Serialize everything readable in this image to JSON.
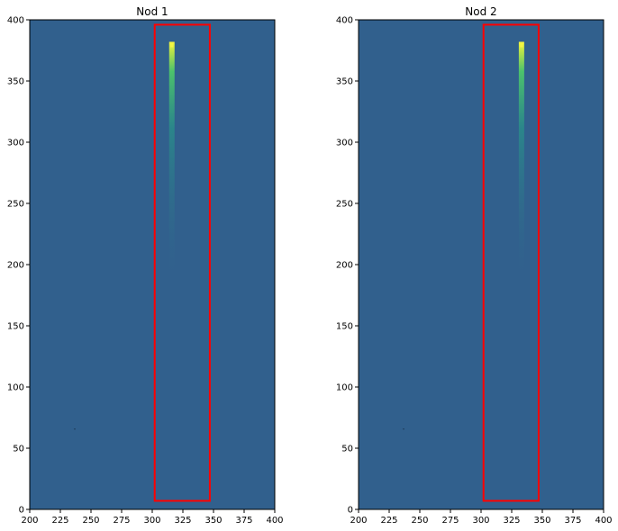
{
  "chart_data": [
    {
      "type": "heatmap",
      "title": "Nod 1",
      "xlabel": "",
      "ylabel": "",
      "xlim": [
        200,
        400
      ],
      "ylim": [
        0,
        400
      ],
      "xticks": [
        200,
        225,
        250,
        275,
        300,
        325,
        350,
        375,
        400
      ],
      "yticks": [
        0,
        50,
        100,
        150,
        200,
        250,
        300,
        350,
        400
      ],
      "xtick_labels": [
        "200",
        "225",
        "250",
        "275",
        "300",
        "325",
        "350",
        "375",
        "400"
      ],
      "ytick_labels": [
        "0",
        "50",
        "100",
        "150",
        "200",
        "250",
        "300",
        "350",
        "400"
      ],
      "background_color": "#31608d",
      "trace": {
        "x": 316,
        "y_top": 382,
        "y_bottom": 180,
        "peak_color": "#f4f542"
      },
      "box": {
        "x0": 302,
        "x1": 347,
        "y0": 7,
        "y1": 396,
        "color": "#ff0000"
      },
      "dot": {
        "x": 236,
        "y": 66
      },
      "grid": false
    },
    {
      "type": "heatmap",
      "title": "Nod 2",
      "xlabel": "",
      "ylabel": "",
      "xlim": [
        200,
        400
      ],
      "ylim": [
        0,
        400
      ],
      "xticks": [
        200,
        225,
        250,
        275,
        300,
        325,
        350,
        375,
        400
      ],
      "yticks": [
        0,
        50,
        100,
        150,
        200,
        250,
        300,
        350,
        400
      ],
      "xtick_labels": [
        "200",
        "225",
        "250",
        "275",
        "300",
        "325",
        "350",
        "375",
        "400"
      ],
      "ytick_labels": [
        "0",
        "50",
        "100",
        "150",
        "200",
        "250",
        "300",
        "350",
        "400"
      ],
      "background_color": "#31608d",
      "trace": {
        "x": 333,
        "y_top": 382,
        "y_bottom": 180,
        "peak_color": "#f4f542"
      },
      "box": {
        "x0": 302,
        "x1": 347,
        "y0": 7,
        "y1": 396,
        "color": "#ff0000"
      },
      "dot": {
        "x": 236,
        "y": 66
      },
      "grid": false
    }
  ]
}
